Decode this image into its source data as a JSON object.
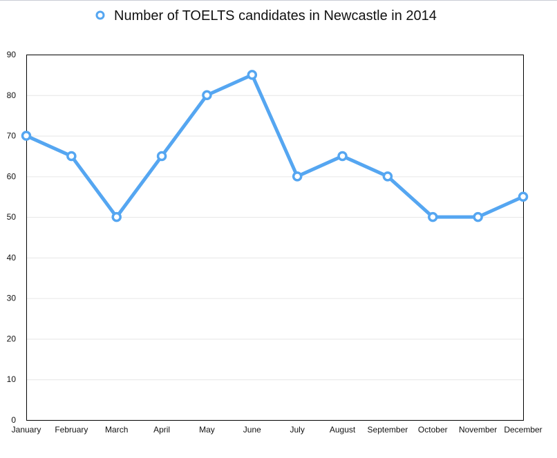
{
  "chart_data": {
    "type": "line",
    "title": "",
    "xlabel": "",
    "ylabel": "",
    "categories": [
      "January",
      "February",
      "March",
      "April",
      "May",
      "June",
      "July",
      "August",
      "September",
      "October",
      "November",
      "December"
    ],
    "series": [
      {
        "name": "Number of TOELTS candidates in Newcastle in 2014",
        "values": [
          70,
          65,
          50,
          65,
          80,
          85,
          60,
          65,
          60,
          50,
          50,
          55
        ]
      }
    ],
    "ylim": [
      0,
      90
    ],
    "yticks": [
      0,
      10,
      20,
      30,
      40,
      50,
      60,
      70,
      80,
      90
    ],
    "grid": true,
    "legend": "top-center",
    "colors": {
      "series": "#55a6f1",
      "grid": "#e6e6e6",
      "axis": "#000000"
    }
  }
}
